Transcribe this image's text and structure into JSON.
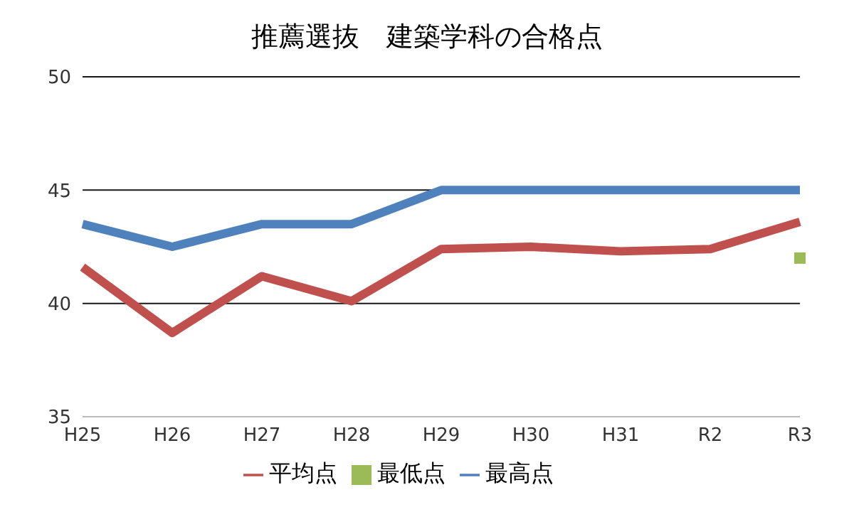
{
  "chart_data": {
    "type": "line",
    "title": "推薦選抜　建築学科の合格点",
    "categories": [
      "H25",
      "H26",
      "H27",
      "H28",
      "H29",
      "H30",
      "H31",
      "R2",
      "R3"
    ],
    "series": [
      {
        "name": "最高点",
        "color": "#4f81bd",
        "values": [
          43.5,
          42.5,
          43.5,
          43.5,
          45,
          45,
          45,
          45,
          45
        ]
      },
      {
        "name": "平均点",
        "color": "#c0504d",
        "values": [
          41.6,
          38.7,
          41.2,
          40.1,
          42.4,
          42.5,
          42.3,
          42.4,
          43.6
        ]
      },
      {
        "name": "最低点",
        "color": "#9bbb59",
        "type": "scatter",
        "marker": "square",
        "values": [
          null,
          null,
          null,
          null,
          null,
          null,
          null,
          null,
          42
        ]
      }
    ],
    "ylim": [
      35,
      50
    ],
    "yticks": [
      35,
      40,
      45,
      50
    ],
    "grid": "y",
    "legend": "bottom",
    "marker": "none",
    "line_style": "solid"
  }
}
